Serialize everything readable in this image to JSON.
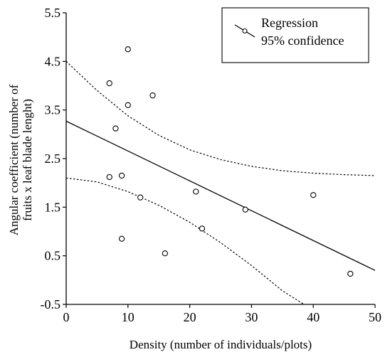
{
  "chart_data": {
    "type": "scatter",
    "xlabel": "Density (number of individuals/plots)",
    "ylabel_lines": [
      "Angular coefficient (number of",
      "fruits x leaf blade lenght)"
    ],
    "xlim": [
      0,
      50
    ],
    "ylim": [
      -0.5,
      5.5
    ],
    "x_ticks": [
      0,
      10,
      20,
      30,
      40,
      50
    ],
    "y_ticks": [
      -0.5,
      0.5,
      1.5,
      2.5,
      3.5,
      4.5,
      5.5
    ],
    "x_tick_labels": [
      "0",
      "10",
      "20",
      "30",
      "40",
      "50"
    ],
    "y_tick_labels": [
      "-0.5",
      "0.5",
      "1.5",
      "2.5",
      "3.5",
      "4.5",
      "5.5"
    ],
    "legend": {
      "placement": "top-right",
      "entries": [
        "Regression",
        "95% confidence"
      ]
    },
    "points": [
      {
        "x": 7,
        "y": 4.05
      },
      {
        "x": 8,
        "y": 3.12
      },
      {
        "x": 7,
        "y": 2.12
      },
      {
        "x": 9,
        "y": 2.15
      },
      {
        "x": 9,
        "y": 0.85
      },
      {
        "x": 10,
        "y": 4.75
      },
      {
        "x": 10,
        "y": 3.6
      },
      {
        "x": 12,
        "y": 1.7
      },
      {
        "x": 14,
        "y": 3.8
      },
      {
        "x": 16,
        "y": 0.55
      },
      {
        "x": 21,
        "y": 1.82
      },
      {
        "x": 22,
        "y": 1.06
      },
      {
        "x": 29,
        "y": 1.45
      },
      {
        "x": 40,
        "y": 1.75
      },
      {
        "x": 46,
        "y": 0.13
      }
    ],
    "regression": {
      "x": [
        0,
        50
      ],
      "y": [
        3.27,
        0.2
      ]
    },
    "confidence_upper": {
      "x": [
        0,
        5,
        10,
        15,
        20,
        25,
        30,
        35,
        40,
        45,
        50
      ],
      "y": [
        4.5,
        3.9,
        3.38,
        2.98,
        2.68,
        2.48,
        2.34,
        2.25,
        2.2,
        2.17,
        2.15
      ]
    },
    "confidence_lower": {
      "x": [
        0,
        5,
        10,
        15,
        20,
        25,
        30,
        35,
        38.5
      ],
      "y": [
        2.1,
        2.02,
        1.82,
        1.54,
        1.19,
        0.77,
        0.3,
        -0.22,
        -0.5
      ]
    }
  }
}
